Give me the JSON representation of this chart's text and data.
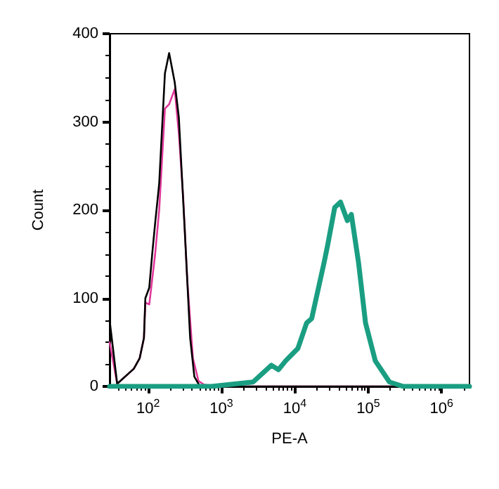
{
  "chart_data": {
    "type": "line",
    "xlabel": "PE-A",
    "ylabel": "Count",
    "log": "x",
    "xlim": [
      30,
      2400000
    ],
    "ylim": [
      0,
      400
    ],
    "xticks": [
      {
        "value": 100,
        "label": "10$^{2}$"
      },
      {
        "value": 1000,
        "label": "10$^{3}$"
      },
      {
        "value": 10000,
        "label": "10$^{4}$"
      },
      {
        "value": 100000,
        "label": "10$^{5}$"
      },
      {
        "value": 1000000,
        "label": "10$^{6}$"
      }
    ],
    "yticks": [
      0,
      100,
      200,
      300,
      400
    ],
    "grid": false,
    "marker": "none",
    "line_style": "solid",
    "series": [
      {
        "color": "#e0389a",
        "x": [
          30,
          38,
          64,
          77,
          88,
          92,
          104,
          125,
          142,
          170,
          194,
          231,
          263,
          301,
          343,
          409,
          488,
          582,
          910,
          2400000
        ],
        "values": [
          50,
          3,
          20,
          32,
          55,
          95,
          93,
          150,
          200,
          315,
          320,
          337,
          287,
          215,
          120,
          32,
          6,
          2,
          0,
          0
        ]
      },
      {
        "color": "#000000",
        "x": [
          30,
          38,
          64,
          77,
          88,
          92,
          104,
          114,
          125,
          142,
          170,
          194,
          231,
          263,
          314,
          375,
          428,
          510,
          1000,
          2400000
        ],
        "values": [
          75,
          3,
          20,
          32,
          55,
          100,
          112,
          150,
          185,
          230,
          355,
          378,
          345,
          305,
          183,
          55,
          11,
          0,
          0,
          0
        ]
      },
      {
        "color": "#1a9e82",
        "x": [
          30,
          730,
          2700,
          4800,
          6000,
          7500,
          11000,
          14500,
          17000,
          25000,
          28000,
          35000,
          42000,
          52000,
          59000,
          74000,
          92000,
          125000,
          195000,
          300000,
          2400000
        ],
        "values": [
          0,
          0,
          5,
          24,
          19,
          29,
          43,
          72,
          77,
          140,
          160,
          203,
          209,
          188,
          195,
          140,
          72,
          29,
          5,
          0,
          0
        ]
      }
    ]
  }
}
